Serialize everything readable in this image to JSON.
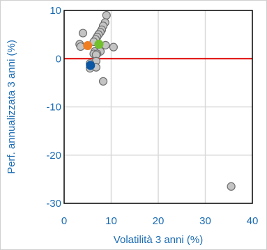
{
  "colors": {
    "axis_text": "#1a6bb3",
    "grid": "#d9d9d9",
    "plot_border": "#000000",
    "zero_line": "#e00000",
    "frame": "#d0d0d0",
    "point_gray": "#c4c4c4",
    "point_gray_stroke": "#6e6e6e",
    "point_orange": "#ef7d22",
    "point_green": "#72c02c",
    "point_blue": "#0b57a4"
  },
  "chart_data": {
    "type": "scatter",
    "title": "",
    "xlabel": "Volatilità 3 anni (%)",
    "ylabel": "Perf. annualizzata 3 anni (%)",
    "xlim": [
      0,
      40
    ],
    "ylim": [
      -30,
      10
    ],
    "x_ticks": [
      0,
      10,
      20,
      30,
      40
    ],
    "y_ticks": [
      10,
      0,
      -10,
      -20,
      -30
    ],
    "grid": true,
    "reference_line": {
      "axis": "y",
      "value": 0,
      "color": "#e00000"
    },
    "series": [
      {
        "color": "#c4c4c4",
        "points": [
          {
            "x": 9.0,
            "y": 9.0
          },
          {
            "x": 8.7,
            "y": 7.5
          },
          {
            "x": 8.3,
            "y": 6.8
          },
          {
            "x": 8.0,
            "y": 6.0
          },
          {
            "x": 7.7,
            "y": 5.5
          },
          {
            "x": 7.3,
            "y": 5.0
          },
          {
            "x": 7.0,
            "y": 4.5
          },
          {
            "x": 6.7,
            "y": 4.0
          },
          {
            "x": 6.3,
            "y": 3.5
          },
          {
            "x": 4.0,
            "y": 5.3
          },
          {
            "x": 3.3,
            "y": 3.0
          },
          {
            "x": 3.5,
            "y": 2.5
          },
          {
            "x": 7.5,
            "y": 2.0
          },
          {
            "x": 6.5,
            "y": 1.5
          },
          {
            "x": 7.7,
            "y": 1.5
          },
          {
            "x": 6.3,
            "y": 1.0
          },
          {
            "x": 7.0,
            "y": 1.0
          },
          {
            "x": 8.8,
            "y": 2.8
          },
          {
            "x": 10.5,
            "y": 2.4
          },
          {
            "x": 6.8,
            "y": 0.8
          },
          {
            "x": 6.8,
            "y": -0.5
          },
          {
            "x": 5.5,
            "y": -1.0
          },
          {
            "x": 5.5,
            "y": -2.0
          },
          {
            "x": 6.8,
            "y": -1.8
          },
          {
            "x": 8.3,
            "y": -4.7
          },
          {
            "x": 35.5,
            "y": -26.5
          }
        ]
      },
      {
        "color": "#ef7d22",
        "points": [
          {
            "x": 5.0,
            "y": 2.7
          }
        ]
      },
      {
        "color": "#72c02c",
        "points": [
          {
            "x": 7.4,
            "y": 3.0
          }
        ]
      },
      {
        "color": "#0b57a4",
        "points": [
          {
            "x": 5.6,
            "y": -1.4
          }
        ]
      }
    ]
  }
}
